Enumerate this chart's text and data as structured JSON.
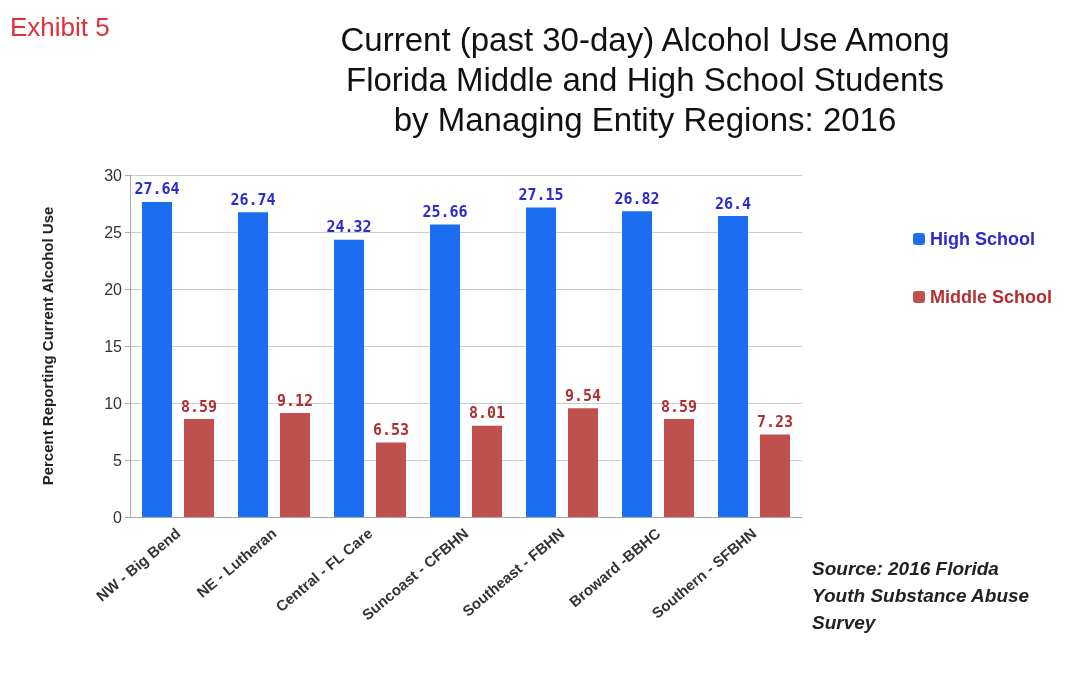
{
  "chart_data": {
    "type": "bar",
    "title": "Current (past 30-day) Alcohol Use Among\nFlorida Middle and High School Students\nby Managing Entity Regions: 2016",
    "ylabel": "Percent Reporting Current Alcohol Use",
    "categories": [
      "NW - Big Bend",
      "NE - Lutheran",
      "Central - FL Care",
      "Suncoast - CFBHN",
      "Southeast - FBHN",
      "Broward -BBHC",
      "Southern - SFBHN"
    ],
    "series": [
      {
        "name": "High School",
        "color": "#1b6ef0",
        "values": [
          27.64,
          26.74,
          24.32,
          25.66,
          27.15,
          26.82,
          26.4
        ]
      },
      {
        "name": "Middle School",
        "color": "#c0504d",
        "values": [
          8.59,
          9.12,
          6.53,
          8.01,
          9.54,
          8.59,
          7.23
        ]
      }
    ],
    "ylim": [
      0,
      30
    ],
    "yticks": [
      0,
      5,
      10,
      15,
      20,
      25,
      30
    ],
    "grid": "y",
    "legend": "right",
    "data_labels": true,
    "annotations": [
      "Exhibit 5",
      "Source: 2016 Florida Youth Substance Abuse Survey"
    ]
  }
}
